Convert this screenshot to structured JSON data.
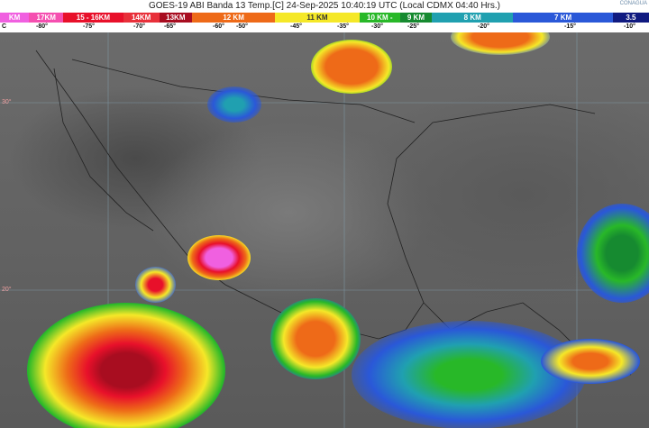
{
  "header": {
    "title": "GOES-19 ABI Banda 13 Temp.[C] 24-Sep-2025 10:40:19 UTC (Local CDMX  04:40 Hrs.)",
    "logo": "CONAGUA"
  },
  "legend": [
    {
      "label": "KM",
      "color": "#f060e0",
      "flex": 32
    },
    {
      "label": "17KM",
      "color": "#f54fb0",
      "flex": 38
    },
    {
      "label": "15 - 16KM",
      "color": "#e8102a",
      "flex": 66
    },
    {
      "label": "14KM",
      "color": "#e8303a",
      "flex": 40
    },
    {
      "label": "13KM",
      "color": "#a80d20",
      "flex": 36
    },
    {
      "label": "12 KM",
      "color": "#ee6a18",
      "flex": 92
    },
    {
      "label": "11 KM",
      "color": "#f5e828",
      "flex": 93
    },
    {
      "label": "10 KM -",
      "color": "#28b828",
      "flex": 45
    },
    {
      "label": "9 KM",
      "color": "#168a30",
      "flex": 35
    },
    {
      "label": "8 KM",
      "color": "#20a0b0",
      "flex": 90
    },
    {
      "label": "7 KM",
      "color": "#2a58d8",
      "flex": 110
    },
    {
      "label": "3.5",
      "color": "#101a80",
      "flex": 40
    }
  ],
  "temperatures": [
    "C",
    "-80°",
    "-75°",
    "-70°",
    "-65°",
    "-60°",
    "-50°",
    "-45°",
    "-35°",
    "-30°",
    "-25°",
    "-20°",
    "-15°",
    "-10°"
  ],
  "latitudes": [
    "30°",
    "20°"
  ]
}
